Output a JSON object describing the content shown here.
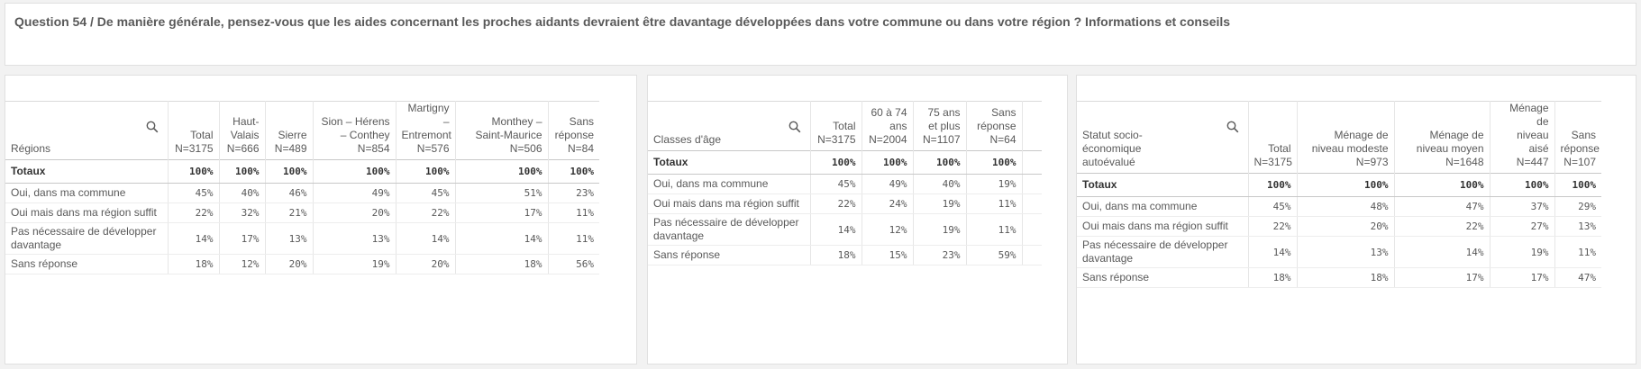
{
  "title": "Question 54 / De manière générale, pensez-vous que les aides concernant les proches aidants devraient être davantage développées dans votre commune ou dans votre région ? Informations et conseils",
  "regions": {
    "dim_label": "Régions",
    "columns": [
      [
        "Total",
        "N=3175"
      ],
      [
        "Haut-",
        "Valais",
        "N=666"
      ],
      [
        "Sierre",
        "N=489"
      ],
      [
        "Sion – Hérens",
        "– Conthey",
        "N=854"
      ],
      [
        "Martigny –",
        "Entremont",
        "N=576"
      ],
      [
        "Monthey –",
        "Saint-Maurice",
        "N=506"
      ],
      [
        "Sans",
        "réponse",
        "N=84"
      ]
    ],
    "rows": [
      {
        "label": "Totaux",
        "values": [
          "100%",
          "100%",
          "100%",
          "100%",
          "100%",
          "100%",
          "100%"
        ]
      },
      {
        "label": "Oui, dans ma commune",
        "values": [
          "45%",
          "40%",
          "46%",
          "49%",
          "45%",
          "51%",
          "23%"
        ]
      },
      {
        "label": "Oui mais dans ma région suffit",
        "values": [
          "22%",
          "32%",
          "21%",
          "20%",
          "22%",
          "17%",
          "11%"
        ]
      },
      {
        "label": "Pas nécessaire de développer davantage",
        "values": [
          "14%",
          "17%",
          "13%",
          "13%",
          "14%",
          "14%",
          "11%"
        ]
      },
      {
        "label": "Sans réponse",
        "values": [
          "18%",
          "12%",
          "20%",
          "19%",
          "20%",
          "18%",
          "56%"
        ]
      }
    ]
  },
  "ages": {
    "dim_label": "Classes d'âge",
    "columns": [
      [
        "Total",
        "N=3175"
      ],
      [
        "60 à 74",
        "ans",
        "N=2004"
      ],
      [
        "75 ans",
        "et plus",
        "N=1107"
      ],
      [
        "Sans",
        "réponse",
        "N=64"
      ]
    ],
    "rows": [
      {
        "label": "Totaux",
        "values": [
          "100%",
          "100%",
          "100%",
          "100%"
        ]
      },
      {
        "label": "Oui, dans ma commune",
        "values": [
          "45%",
          "49%",
          "40%",
          "19%"
        ]
      },
      {
        "label": "Oui mais dans ma région suffit",
        "values": [
          "22%",
          "24%",
          "19%",
          "11%"
        ]
      },
      {
        "label": "Pas nécessaire de développer davantage",
        "values": [
          "14%",
          "12%",
          "19%",
          "11%"
        ]
      },
      {
        "label": "Sans réponse",
        "values": [
          "18%",
          "15%",
          "23%",
          "59%"
        ]
      }
    ]
  },
  "status": {
    "dim_label": "Statut socio-économique autoévalué",
    "columns": [
      [
        "Total",
        "N=3175"
      ],
      [
        "Ménage de",
        "niveau modeste",
        "N=973"
      ],
      [
        "Ménage de",
        "niveau moyen",
        "N=1648"
      ],
      [
        "Ménage de",
        "niveau aisé",
        "N=447"
      ],
      [
        "Sans",
        "réponse",
        "N=107"
      ]
    ],
    "rows": [
      {
        "label": "Totaux",
        "values": [
          "100%",
          "100%",
          "100%",
          "100%",
          "100%"
        ]
      },
      {
        "label": "Oui, dans ma commune",
        "values": [
          "45%",
          "48%",
          "47%",
          "37%",
          "29%"
        ]
      },
      {
        "label": "Oui mais dans ma région suffit",
        "values": [
          "22%",
          "20%",
          "22%",
          "27%",
          "13%"
        ]
      },
      {
        "label": "Pas nécessaire de développer davantage",
        "values": [
          "14%",
          "13%",
          "14%",
          "19%",
          "11%"
        ]
      },
      {
        "label": "Sans réponse",
        "values": [
          "18%",
          "18%",
          "17%",
          "17%",
          "47%"
        ]
      }
    ]
  }
}
